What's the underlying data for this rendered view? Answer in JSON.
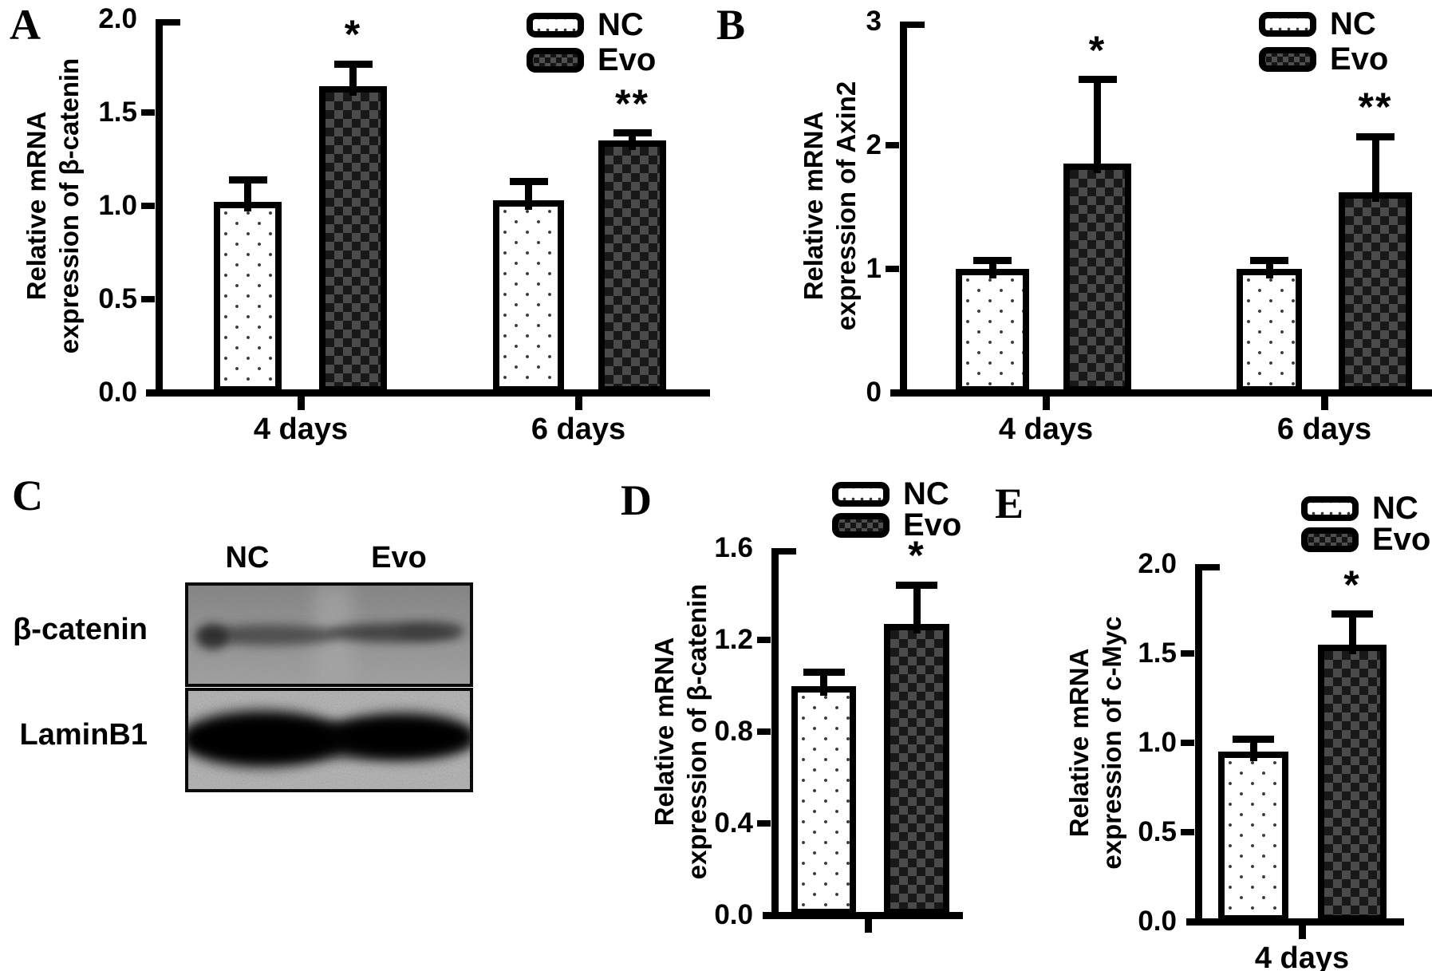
{
  "colors": {
    "foreground": "#000000",
    "background": "#ffffff",
    "evo_fill_dark": "#1b1b1b",
    "evo_fill_light": "#4b4b4b"
  },
  "legend": {
    "items": [
      {
        "label": "NC",
        "pattern": "dotted-white-swatch"
      },
      {
        "label": "Evo",
        "pattern": "checker-dark-swatch"
      }
    ]
  },
  "panels": {
    "A": {
      "letter": "A",
      "ylabel_lines": [
        "Relative mRNA",
        "expression of β-catenin"
      ]
    },
    "B": {
      "letter": "B",
      "ylabel_lines": [
        "Relative mRNA",
        "expression of Axin2"
      ]
    },
    "C": {
      "letter": "C",
      "lane_labels": [
        "NC",
        "Evo"
      ],
      "row_labels": [
        "β-catenin",
        "LaminB1"
      ]
    },
    "D": {
      "letter": "D",
      "ylabel_lines": [
        "Relative mRNA",
        "expression of β-catenin"
      ]
    },
    "E": {
      "letter": "E",
      "ylabel_lines": [
        "Relative mRNA",
        "expression of c-Myc"
      ]
    }
  },
  "chart_data": [
    {
      "id": "A",
      "type": "bar",
      "title": "",
      "xlabel": "",
      "ylabel": "Relative mRNA expression of β-catenin",
      "categories": [
        "4 days",
        "6 days"
      ],
      "series": [
        {
          "name": "NC",
          "values": [
            1.02,
            1.03
          ],
          "errors": [
            0.12,
            0.1
          ],
          "significance": [
            "",
            ""
          ]
        },
        {
          "name": "Evo",
          "values": [
            1.64,
            1.35
          ],
          "errors": [
            0.12,
            0.04
          ],
          "significance": [
            "*",
            "**"
          ]
        }
      ],
      "ylim": [
        0,
        2.0
      ],
      "yticks": [
        0,
        0.5,
        1.0,
        1.5,
        2.0
      ],
      "ytick_labels": [
        "0.0",
        "0.5",
        "1.0",
        "1.5",
        "2.0"
      ],
      "grid": false,
      "legend_position": "top-right"
    },
    {
      "id": "B",
      "type": "bar",
      "title": "",
      "xlabel": "",
      "ylabel": "Relative mRNA expression of Axin2",
      "categories": [
        "4 days",
        "6 days"
      ],
      "series": [
        {
          "name": "NC",
          "values": [
            1.0,
            1.0
          ],
          "errors": [
            0.07,
            0.07
          ],
          "significance": [
            "",
            ""
          ]
        },
        {
          "name": "Evo",
          "values": [
            1.85,
            1.62
          ],
          "errors": [
            0.68,
            0.45
          ],
          "significance": [
            "*",
            "**"
          ]
        }
      ],
      "ylim": [
        0,
        3
      ],
      "yticks": [
        0,
        1,
        2,
        3
      ],
      "ytick_labels": [
        "0",
        "1",
        "2",
        "3"
      ],
      "grid": false,
      "legend_position": "top-right"
    },
    {
      "id": "D",
      "type": "bar",
      "title": "",
      "xlabel": "",
      "ylabel": "Relative mRNA expression of β-catenin",
      "categories": [
        ""
      ],
      "series": [
        {
          "name": "NC",
          "values": [
            1.0
          ],
          "errors": [
            0.06
          ],
          "significance": [
            ""
          ]
        },
        {
          "name": "Evo",
          "values": [
            1.27
          ],
          "errors": [
            0.17
          ],
          "significance": [
            "*"
          ]
        }
      ],
      "ylim": [
        0,
        1.6
      ],
      "yticks": [
        0,
        0.4,
        0.8,
        1.2,
        1.6
      ],
      "ytick_labels": [
        "0.0",
        "0.4",
        "0.8",
        "1.2",
        "1.6"
      ],
      "grid": false,
      "legend_position": "top-right"
    },
    {
      "id": "E",
      "type": "bar",
      "title": "",
      "xlabel": "",
      "ylabel": "Relative mRNA expression of c-Myc",
      "categories": [
        "4 days"
      ],
      "series": [
        {
          "name": "NC",
          "values": [
            0.95
          ],
          "errors": [
            0.07
          ],
          "significance": [
            ""
          ]
        },
        {
          "name": "Evo",
          "values": [
            1.55
          ],
          "errors": [
            0.17
          ],
          "significance": [
            "*"
          ]
        }
      ],
      "ylim": [
        0,
        2.0
      ],
      "yticks": [
        0,
        0.5,
        1.0,
        1.5,
        2.0
      ],
      "ytick_labels": [
        "0.0",
        "0.5",
        "1.0",
        "1.5",
        "2.0"
      ],
      "grid": false,
      "legend_position": "top-right"
    }
  ]
}
